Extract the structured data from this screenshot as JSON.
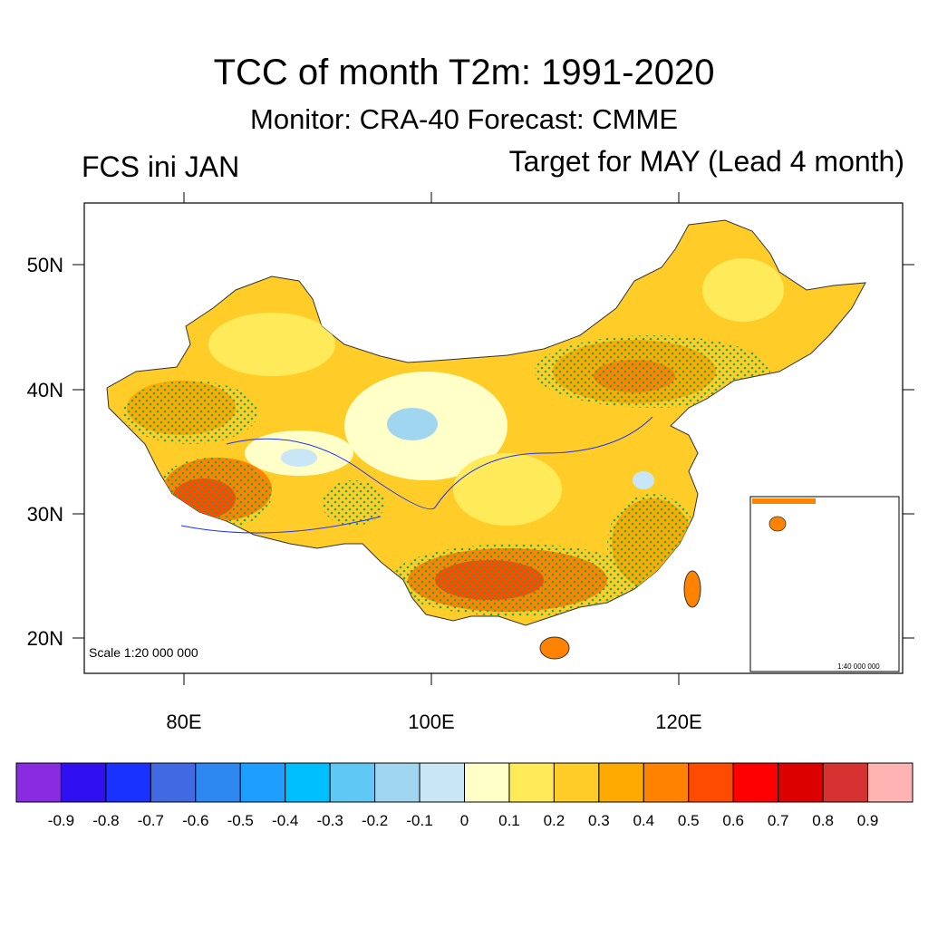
{
  "title": "TCC of month T2m: 1991-2020",
  "subtitle": "Monitor: CRA-40   Forecast: CMME",
  "left_label": "FCS ini JAN",
  "right_label": "Target for MAY (Lead 4 month)",
  "scale_main": "Scale 1:20 000 000",
  "scale_inset": "1:40 000 000",
  "lat_labels": [
    "50N",
    "40N",
    "30N",
    "20N"
  ],
  "lon_labels": [
    "80E",
    "100E",
    "120E"
  ],
  "colorbar": {
    "colors": [
      "#8a2be2",
      "#3010f0",
      "#1a32ff",
      "#4169e1",
      "#2d87f0",
      "#1e9fff",
      "#00bfff",
      "#5fc8f5",
      "#a0d6f0",
      "#c8e6f5",
      "#ffffc8",
      "#ffea5a",
      "#ffcc28",
      "#ffaa00",
      "#ff8200",
      "#ff4b00",
      "#ff0000",
      "#dc0000",
      "#d73232",
      "#ffb4b4"
    ],
    "labels": [
      "-0.9",
      "-0.8",
      "-0.7",
      "-0.6",
      "-0.5",
      "-0.4",
      "-0.3",
      "-0.2",
      "-0.1",
      "0",
      "0.1",
      "0.2",
      "0.3",
      "0.4",
      "0.5",
      "0.6",
      "0.7",
      "0.8",
      "0.9"
    ]
  },
  "significance_color": "#22aa44"
}
